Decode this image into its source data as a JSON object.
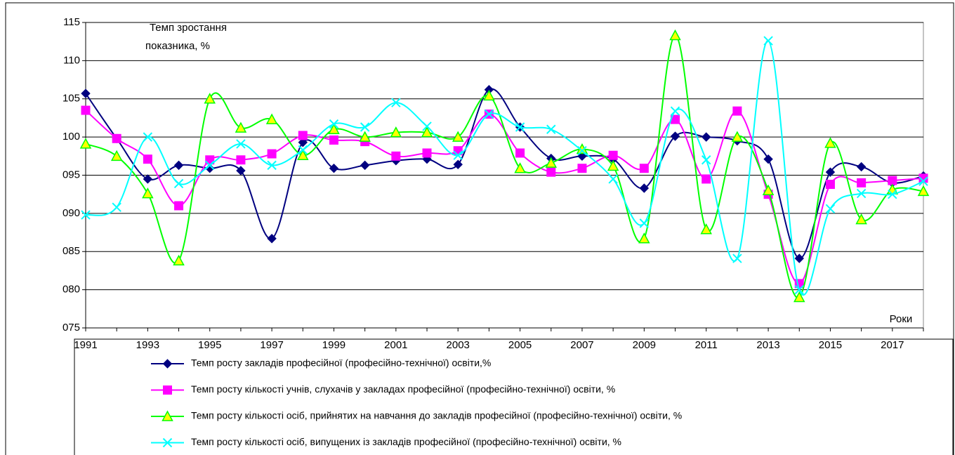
{
  "chart_data": {
    "type": "line",
    "ylabel_lines": [
      "Темп зростання",
      "показника, %"
    ],
    "xlabel": "Роки",
    "categories": [
      "1991",
      null,
      "1993",
      null,
      "1995",
      null,
      "1997",
      null,
      "1999",
      null,
      "2001",
      null,
      "2003",
      null,
      "2005",
      null,
      "2007",
      null,
      "2009",
      null,
      "2011",
      null,
      "2013",
      null,
      "2015",
      null,
      "2017",
      null
    ],
    "ylim": [
      75,
      115
    ],
    "yticks": [
      {
        "value": 75,
        "label": "075"
      },
      {
        "value": 80,
        "label": "080"
      },
      {
        "value": 85,
        "label": "085"
      },
      {
        "value": 90,
        "label": "090"
      },
      {
        "value": 95,
        "label": "095"
      },
      100,
      105,
      110,
      115
    ],
    "grid": true,
    "series": [
      {
        "name": "Темп росту закладів професійної (професійно-технічної) освіти,%",
        "color": "#000080",
        "marker": "diamond",
        "values": [
          105.7,
          99.8,
          94.5,
          96.3,
          95.9,
          95.6,
          86.7,
          99.3,
          95.9,
          96.3,
          96.9,
          97.1,
          96.4,
          106.2,
          101.3,
          97.2,
          97.5,
          97.1,
          93.3,
          100.1,
          100,
          99.5,
          97.1,
          84.1,
          95.4,
          96.1,
          94,
          94.9
        ]
      },
      {
        "name": "Темп росту кількості учнів, слухачів у закладах професійної (професійно-технічної) освіти, %",
        "color": "#ff00ff",
        "marker": "square",
        "values": [
          103.5,
          99.8,
          97.1,
          91,
          97,
          97,
          97.8,
          100.2,
          99.6,
          99.4,
          97.5,
          97.9,
          98.2,
          103,
          97.9,
          95.4,
          95.9,
          97.6,
          95.9,
          102.3,
          94.5,
          103.4,
          92.5,
          80.8,
          93.8,
          94,
          94.3,
          94.6
        ]
      },
      {
        "name": "Темп росту кількості осіб, прийнятих на навчання до закладів професійної (професійно-технічної) освіти, %",
        "color": "#00ff00",
        "marker": "triangle",
        "values": [
          99.1,
          97.5,
          92.6,
          83.8,
          105,
          101.2,
          102.3,
          97.6,
          101,
          100,
          100.6,
          100.6,
          100,
          105.4,
          95.9,
          96.6,
          98.4,
          96.2,
          86.7,
          113.3,
          87.9,
          100,
          93,
          79,
          99.2,
          89.2,
          93.1,
          92.9
        ]
      },
      {
        "name": "Темп росту кількості осіб, випущених із закладів професійної (професійно-технічної) освіти, %",
        "color": "#00ffff",
        "marker": "x",
        "values": [
          89.8,
          90.8,
          100,
          93.9,
          96.3,
          99.1,
          96.3,
          98.3,
          101.7,
          101.3,
          104.5,
          101.4,
          97.6,
          103,
          101.3,
          101,
          98.2,
          94.5,
          88.7,
          103.4,
          97,
          84.1,
          112.6,
          80,
          90.6,
          92.6,
          92.5,
          94.2
        ]
      }
    ]
  }
}
